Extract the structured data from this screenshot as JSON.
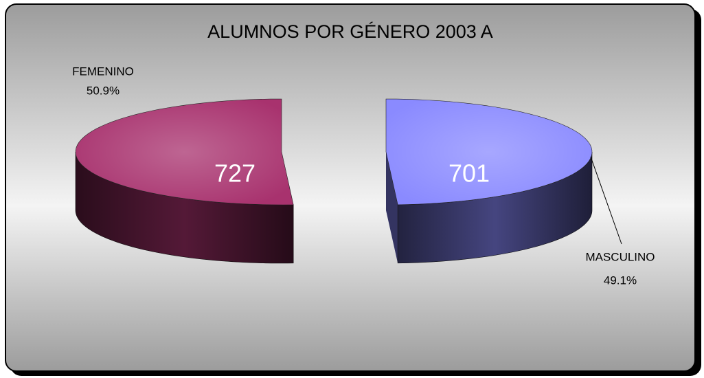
{
  "chart_data": {
    "type": "pie3d",
    "title": "ALUMNOS POR GÉNERO 2003 A",
    "categories": [
      "FEMENINO",
      "MASCULINO"
    ],
    "values": [
      727,
      701
    ],
    "percent_labels": [
      "50.9%",
      "49.1%"
    ],
    "colors": [
      "#a8326e",
      "#8a8aff"
    ]
  }
}
